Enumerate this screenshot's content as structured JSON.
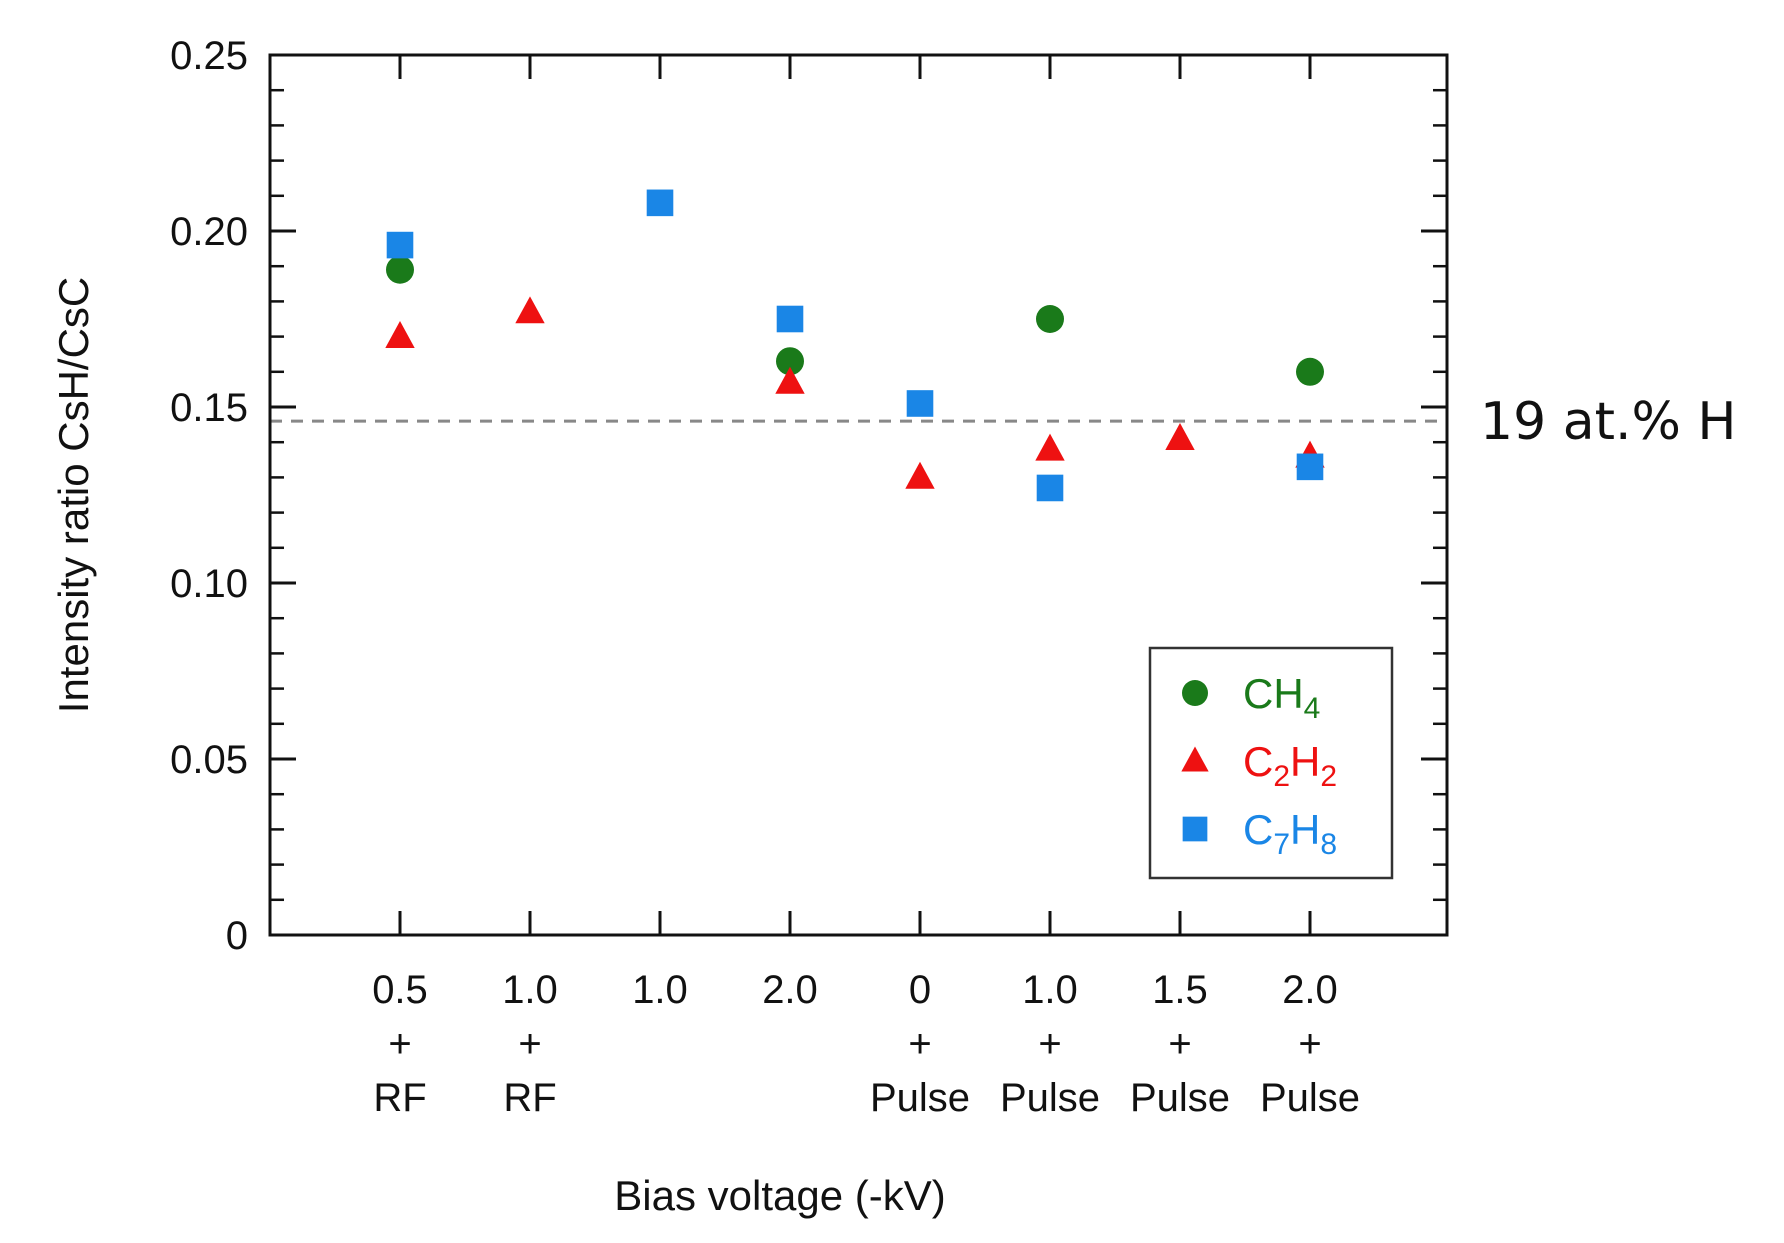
{
  "chart_data": {
    "type": "scatter",
    "title": "",
    "xlabel": "Bias voltage (-kV)",
    "ylabel": "Intensity ratio CsH/CsC",
    "ylim": [
      0,
      0.25
    ],
    "yticks": [
      "0",
      "0.05",
      "0.10",
      "0.15",
      "0.20",
      "0.25"
    ],
    "categories": [
      {
        "lines": [
          "0.5",
          "+",
          "RF"
        ]
      },
      {
        "lines": [
          "1.0",
          "+",
          "RF"
        ]
      },
      {
        "lines": [
          "1.0"
        ]
      },
      {
        "lines": [
          "2.0"
        ]
      },
      {
        "lines": [
          "0",
          "+",
          "Pulse"
        ]
      },
      {
        "lines": [
          "1.0",
          "+",
          "Pulse"
        ]
      },
      {
        "lines": [
          "1.5",
          "+",
          "Pulse"
        ]
      },
      {
        "lines": [
          "2.0",
          "+",
          "Pulse"
        ]
      }
    ],
    "series": [
      {
        "name": "CH4",
        "formula": [
          {
            "t": "CH"
          },
          {
            "sub": "4"
          }
        ],
        "marker": "circle",
        "color": "#1a7a1a",
        "values": [
          0.189,
          null,
          null,
          0.163,
          null,
          0.175,
          null,
          0.16
        ]
      },
      {
        "name": "C2H2",
        "formula": [
          {
            "t": "C"
          },
          {
            "sub": "2"
          },
          {
            "t": "H"
          },
          {
            "sub": "2"
          }
        ],
        "marker": "triangle",
        "color": "#ee1111",
        "values": [
          0.17,
          0.177,
          null,
          0.157,
          0.13,
          0.138,
          0.141,
          0.136
        ]
      },
      {
        "name": "C7H8",
        "formula": [
          {
            "t": "C"
          },
          {
            "sub": "7"
          },
          {
            "t": "H"
          },
          {
            "sub": "8"
          }
        ],
        "marker": "square",
        "color": "#1a86e6",
        "values": [
          0.196,
          null,
          0.208,
          0.175,
          0.151,
          0.127,
          null,
          0.133
        ]
      }
    ],
    "reference_line": {
      "value": 0.146,
      "label": "19 at.% H",
      "style": "dashed",
      "color": "#888888"
    },
    "legend": "bottom-right",
    "grid": false
  }
}
